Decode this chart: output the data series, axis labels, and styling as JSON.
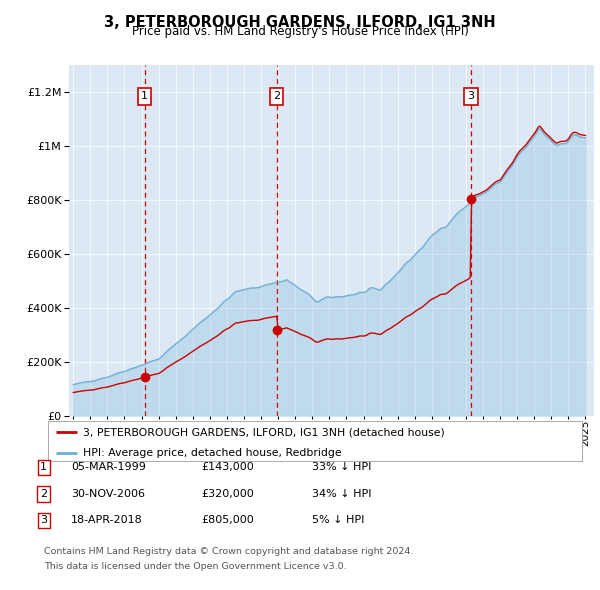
{
  "title": "3, PETERBOROUGH GARDENS, ILFORD, IG1 3NH",
  "subtitle": "Price paid vs. HM Land Registry's House Price Index (HPI)",
  "legend_line1": "3, PETERBOROUGH GARDENS, ILFORD, IG1 3NH (detached house)",
  "legend_line2": "HPI: Average price, detached house, Redbridge",
  "sale_year_nums": [
    1999.18,
    2006.92,
    2018.3
  ],
  "sale_prices": [
    143000,
    320000,
    805000
  ],
  "sale_labels": [
    "1",
    "2",
    "3"
  ],
  "table_rows": [
    [
      "1",
      "05-MAR-1999",
      "£143,000",
      "33% ↓ HPI"
    ],
    [
      "2",
      "30-NOV-2006",
      "£320,000",
      "34% ↓ HPI"
    ],
    [
      "3",
      "18-APR-2018",
      "£805,000",
      "5% ↓ HPI"
    ]
  ],
  "footer1": "Contains HM Land Registry data © Crown copyright and database right 2024.",
  "footer2": "This data is licensed under the Open Government Licence v3.0.",
  "hpi_color": "#6baed6",
  "price_color": "#cc0000",
  "vline_color": "#cc0000",
  "background_color": "#dce9f5",
  "ylim": [
    0,
    1300000
  ],
  "xlim_start": 1994.75,
  "xlim_end": 2025.5
}
